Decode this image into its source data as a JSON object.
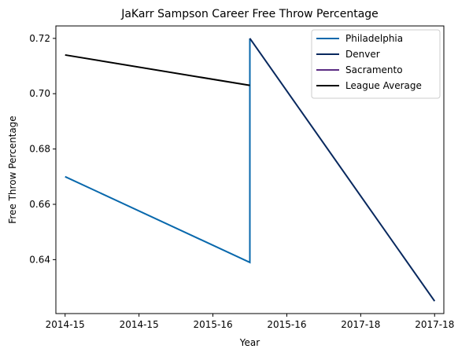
{
  "chart_data": {
    "type": "line",
    "title": "JaKarr Sampson Career Free Throw Percentage",
    "xlabel": "Year",
    "ylabel": "Free Throw Percentage",
    "x_tick_labels": [
      "2014-15",
      "2014-15",
      "2015-16",
      "2015-16",
      "2017-18",
      "2017-18"
    ],
    "x_range": [
      -0.1,
      4.1
    ],
    "ylim": [
      0.6205,
      0.7245
    ],
    "y_ticks": [
      0.64,
      0.66,
      0.68,
      0.7,
      0.72
    ],
    "y_tick_labels": [
      "0.64",
      "0.66",
      "0.68",
      "0.70",
      "0.72"
    ],
    "grid": false,
    "legend_position": "top-right",
    "series": [
      {
        "name": "Philadelphia",
        "color": "#0868ac",
        "points": [
          {
            "x": 0,
            "y": 0.67
          },
          {
            "x": 2,
            "y": 0.639
          },
          {
            "x": 2,
            "y": 0.72
          }
        ]
      },
      {
        "name": "Denver",
        "color": "#08285e",
        "points": [
          {
            "x": 2,
            "y": 0.72
          },
          {
            "x": 4,
            "y": 0.625
          }
        ]
      },
      {
        "name": "Sacramento",
        "color": "#5b2c83",
        "points": []
      },
      {
        "name": "League Average",
        "color": "#000000",
        "points": [
          {
            "x": 0,
            "y": 0.714
          },
          {
            "x": 2,
            "y": 0.703
          }
        ]
      }
    ]
  }
}
